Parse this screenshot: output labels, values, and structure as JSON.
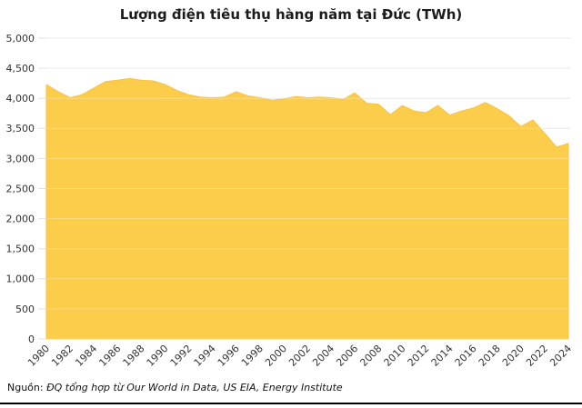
{
  "page": {
    "title": "Lượng điện tiêu thụ hàng năm tại Đức (TWh)"
  },
  "source": {
    "prefix": "Nguồn:",
    "text": "ĐQ tổng hợp từ Our World in Data, US EIA, Energy Institute"
  },
  "chart_data": {
    "type": "area",
    "title": "Lượng điện tiêu thụ hàng năm tại Đức (TWh)",
    "xlabel": "",
    "ylabel": "",
    "ylim": [
      0,
      5000
    ],
    "ytick_step": 500,
    "xtick_step": 2,
    "grid": true,
    "legend": "none",
    "years": [
      1980,
      1981,
      1982,
      1983,
      1984,
      1985,
      1986,
      1987,
      1988,
      1989,
      1990,
      1991,
      1992,
      1993,
      1994,
      1995,
      1996,
      1997,
      1998,
      1999,
      2000,
      2001,
      2002,
      2003,
      2004,
      2005,
      2006,
      2007,
      2008,
      2009,
      2010,
      2011,
      2012,
      2013,
      2014,
      2015,
      2016,
      2017,
      2018,
      2019,
      2020,
      2021,
      2022,
      2023,
      2024
    ],
    "values": [
      4230,
      4110,
      4010,
      4060,
      4170,
      4280,
      4300,
      4330,
      4300,
      4290,
      4230,
      4130,
      4060,
      4020,
      4010,
      4020,
      4110,
      4040,
      4010,
      3970,
      3990,
      4030,
      4010,
      4020,
      4010,
      3980,
      4090,
      3920,
      3900,
      3730,
      3880,
      3790,
      3760,
      3880,
      3720,
      3790,
      3840,
      3930,
      3830,
      3710,
      3530,
      3640,
      3420,
      3190,
      3250
    ],
    "ytick_labels": [
      "0",
      "500",
      "1,000",
      "1,500",
      "2,000",
      "2,500",
      "3,000",
      "3,500",
      "4,000",
      "4,500",
      "5,000"
    ],
    "xtick_labels": [
      "1980",
      "1982",
      "1984",
      "1986",
      "1988",
      "1990",
      "1992",
      "1994",
      "1996",
      "1998",
      "2000",
      "2002",
      "2004",
      "2006",
      "2008",
      "2010",
      "2012",
      "2014",
      "2016",
      "2018",
      "2020",
      "2022",
      "2024"
    ],
    "colors": {
      "area_fill": "#FCCD4A",
      "area_edge": "#F7C33E",
      "gridline": "#E3E3E3",
      "grid_overlay": "#FFFFFF",
      "tick_text": "#333333",
      "title_text": "#1c1c1c",
      "bottom_rule": "#000000"
    }
  }
}
